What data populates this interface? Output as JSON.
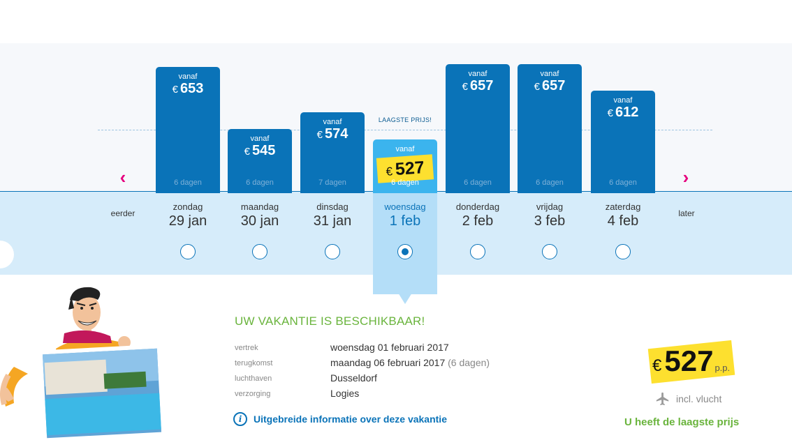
{
  "colors": {
    "bar": "#0a73b8",
    "selected_bar": "#3bb4ee",
    "highlight": "#fde02f",
    "accent_arrow": "#e6007e",
    "success": "#6ab43d"
  },
  "nav": {
    "earlier": "eerder",
    "later": "later",
    "prev_icon": "chevron-left-icon",
    "next_icon": "chevron-right-icon"
  },
  "lowest_label": "LAAGSTE PRIJS!",
  "currency": "€",
  "chart_data": {
    "type": "bar",
    "categories": [
      "zondag 29 jan",
      "maandag 30 jan",
      "dinsdag 31 jan",
      "woensdag 1 feb",
      "donderdag 2 feb",
      "vrijdag 3 feb",
      "zaterdag 4 feb"
    ],
    "values": [
      653,
      545,
      574,
      527,
      657,
      657,
      612
    ]
  },
  "days": [
    {
      "prefix": "vanaf",
      "price": "653",
      "duration": "6 dagen",
      "weekday": "zondag",
      "date": "29 jan",
      "selected": false
    },
    {
      "prefix": "vanaf",
      "price": "545",
      "duration": "6 dagen",
      "weekday": "maandag",
      "date": "30 jan",
      "selected": false
    },
    {
      "prefix": "vanaf",
      "price": "574",
      "duration": "7 dagen",
      "weekday": "dinsdag",
      "date": "31 jan",
      "selected": false
    },
    {
      "prefix": "vanaf",
      "price": "527",
      "duration": "6 dagen",
      "weekday": "woensdag",
      "date": "1 feb",
      "selected": true
    },
    {
      "prefix": "vanaf",
      "price": "657",
      "duration": "6 dagen",
      "weekday": "donderdag",
      "date": "2 feb",
      "selected": false
    },
    {
      "prefix": "vanaf",
      "price": "657",
      "duration": "6 dagen",
      "weekday": "vrijdag",
      "date": "3 feb",
      "selected": false
    },
    {
      "prefix": "vanaf",
      "price": "612",
      "duration": "6 dagen",
      "weekday": "zaterdag",
      "date": "4 feb",
      "selected": false
    }
  ],
  "summary": {
    "title": "UW VAKANTIE IS BESCHIKBAAR!",
    "rows": [
      {
        "label": "vertrek",
        "value": "woensdag 01 februari 2017",
        "extra": ""
      },
      {
        "label": "terugkomst",
        "value": "maandag 06 februari 2017",
        "extra": "(6 dagen)"
      },
      {
        "label": "luchthaven",
        "value": "Dusseldorf",
        "extra": ""
      },
      {
        "label": "verzorging",
        "value": "Logies",
        "extra": ""
      }
    ],
    "info_link": "Uitgebreide informatie over deze vakantie",
    "info_icon": "info-icon"
  },
  "price_box": {
    "currency": "€",
    "amount": "527",
    "per": "p.p.",
    "flight_icon": "plane-icon",
    "flight_text": "incl. vlucht",
    "lowest_message": "U heeft de laagste prijs"
  }
}
